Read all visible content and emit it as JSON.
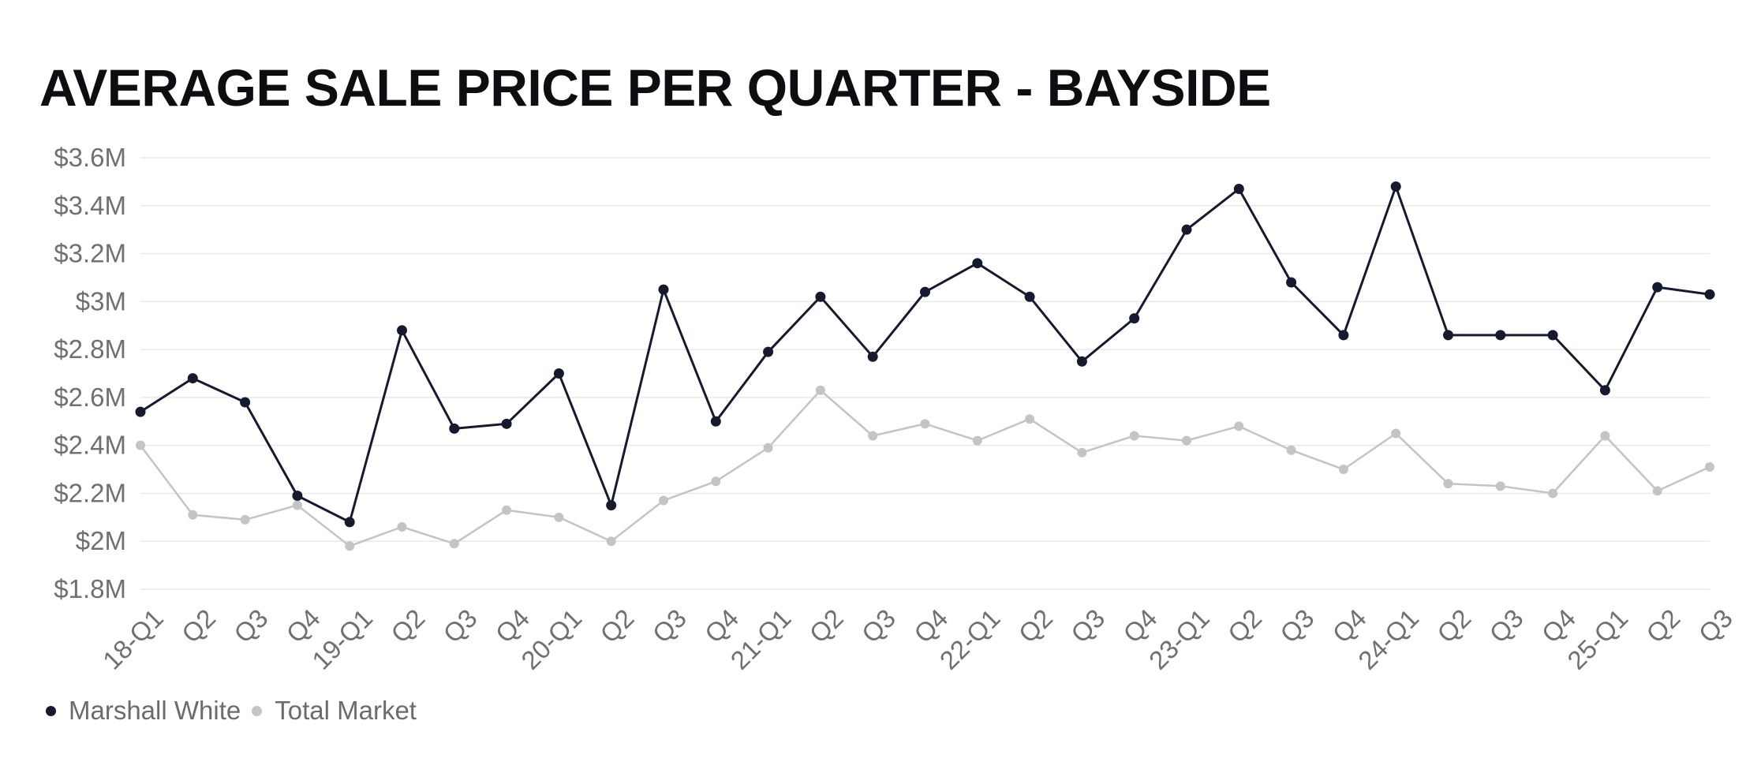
{
  "colors": {
    "marshall_white": "#161a2e",
    "total_market": "#c4c4c4",
    "grid": "#e9e9e9",
    "tick_text": "#707070"
  },
  "chart_data": {
    "type": "line",
    "title": "AVERAGE SALE PRICE PER QUARTER - BAYSIDE",
    "xlabel": "",
    "ylabel": "",
    "ylim": [
      1.8,
      3.6
    ],
    "y_ticks": [
      {
        "value": 1.8,
        "label": "$1.8M"
      },
      {
        "value": 2.0,
        "label": "$2M"
      },
      {
        "value": 2.2,
        "label": "$2.2M"
      },
      {
        "value": 2.4,
        "label": "$2.4M"
      },
      {
        "value": 2.6,
        "label": "$2.6M"
      },
      {
        "value": 2.8,
        "label": "$2.8M"
      },
      {
        "value": 3.0,
        "label": "$3M"
      },
      {
        "value": 3.2,
        "label": "$3.2M"
      },
      {
        "value": 3.4,
        "label": "$3.4M"
      },
      {
        "value": 3.6,
        "label": "$3.6M"
      }
    ],
    "categories": [
      "18-Q1",
      "Q2",
      "Q3",
      "Q4",
      "19-Q1",
      "Q2",
      "Q3",
      "Q4",
      "20-Q1",
      "Q2",
      "Q3",
      "Q4",
      "21-Q1",
      "Q2",
      "Q3",
      "Q4",
      "22-Q1",
      "Q2",
      "Q3",
      "Q4",
      "23-Q1",
      "Q2",
      "Q3",
      "Q4",
      "24-Q1",
      "Q2",
      "Q3",
      "Q4",
      "25-Q1",
      "Q2",
      "Q3"
    ],
    "grid": true,
    "legend_position": "bottom-left",
    "series": [
      {
        "name": "Marshall White",
        "color": "#161a2e",
        "values": [
          2.54,
          2.68,
          2.58,
          2.19,
          2.08,
          2.88,
          2.47,
          2.49,
          2.7,
          2.15,
          3.05,
          2.5,
          2.79,
          3.02,
          2.77,
          3.04,
          3.16,
          3.02,
          2.75,
          2.93,
          3.3,
          3.47,
          3.08,
          2.86,
          3.48,
          2.86,
          2.86,
          2.86,
          2.63,
          3.06,
          3.03
        ]
      },
      {
        "name": "Total Market",
        "color": "#c4c4c4",
        "values": [
          2.4,
          2.11,
          2.09,
          2.15,
          1.98,
          2.06,
          1.99,
          2.13,
          2.1,
          2.0,
          2.17,
          2.25,
          2.39,
          2.63,
          2.44,
          2.49,
          2.42,
          2.51,
          2.37,
          2.44,
          2.42,
          2.48,
          2.38,
          2.3,
          2.45,
          2.24,
          2.23,
          2.2,
          2.44,
          2.21,
          2.31
        ]
      }
    ]
  }
}
